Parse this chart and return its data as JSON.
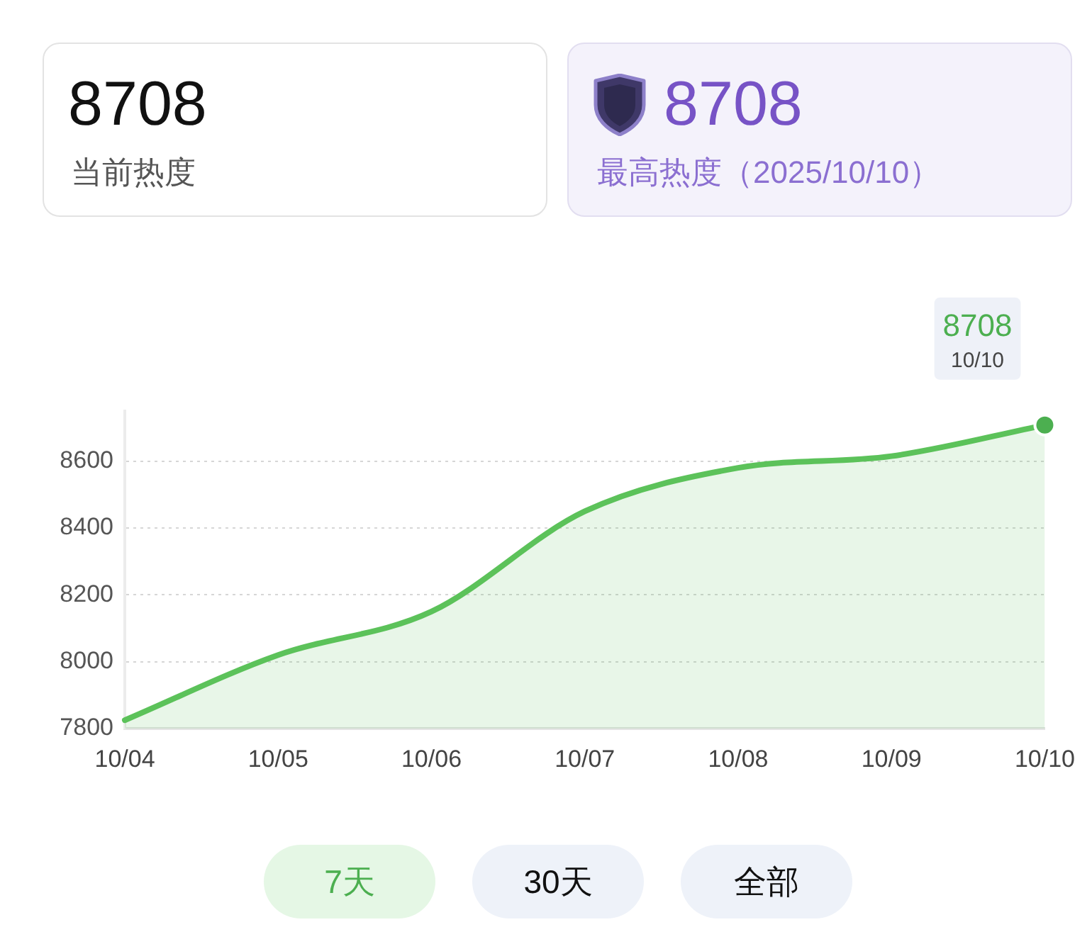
{
  "chart_data": {
    "type": "area",
    "categories": [
      "10/04",
      "10/05",
      "10/06",
      "10/07",
      "10/08",
      "10/09",
      "10/10"
    ],
    "values": [
      7825,
      8020,
      8150,
      8450,
      8580,
      8615,
      8708
    ],
    "color": "#5cc25a",
    "value_labels": [
      null,
      null,
      null,
      null,
      null,
      null,
      "8708"
    ],
    "ylim": [
      7800,
      8750
    ],
    "yticks": [
      7800,
      8000,
      8200,
      8400,
      8600
    ],
    "grid": "y",
    "annotations": [
      "8708",
      "当前热度",
      "8708",
      "最高热度（2025/10/10）",
      "7天",
      "30天",
      "全部",
      "10/10"
    ]
  }
}
